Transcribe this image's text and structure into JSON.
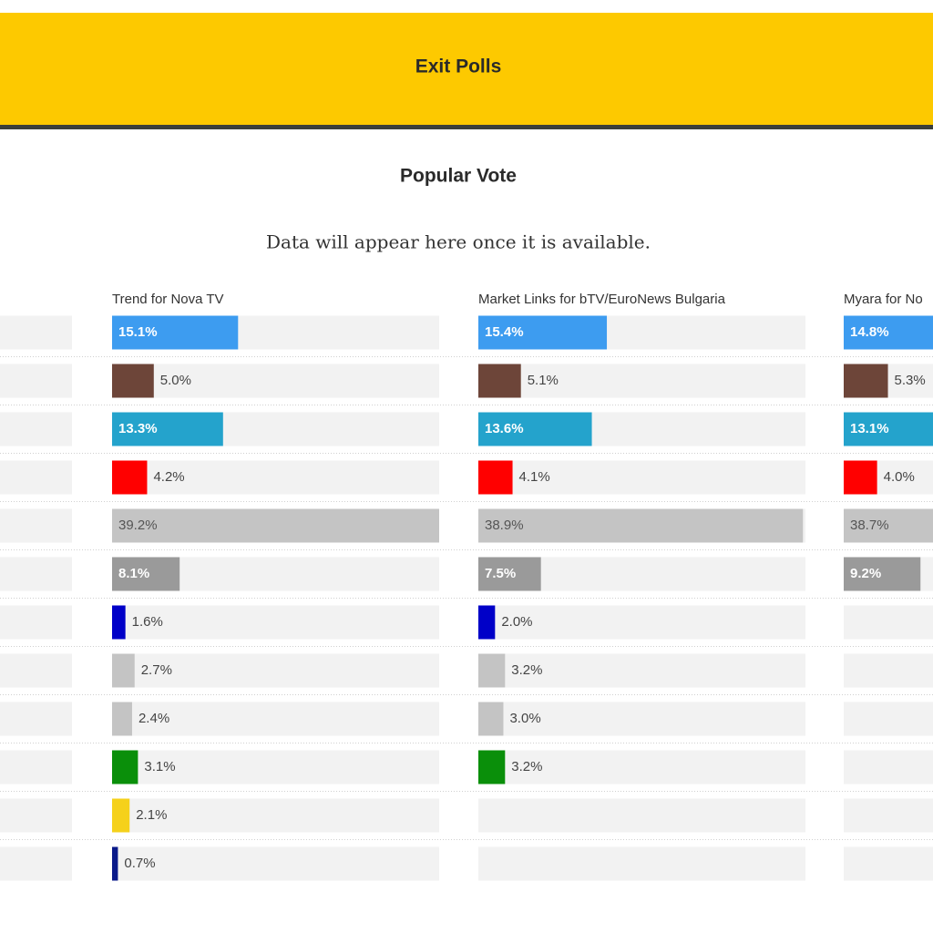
{
  "header": {
    "title": "Exit Polls"
  },
  "section": {
    "title": "Popular Vote",
    "message": "Data will appear here once it is available."
  },
  "chart_data": [
    {
      "type": "bar",
      "orientation": "horizontal",
      "title": "Trend for Nova TV",
      "values": [
        15.1,
        5.0,
        13.3,
        4.2,
        39.2,
        8.1,
        1.6,
        2.7,
        2.4,
        3.1,
        2.1,
        0.7
      ],
      "value_labels": [
        "15.1%",
        "5.0%",
        "13.3%",
        "4.2%",
        "39.2%",
        "8.1%",
        "1.6%",
        "2.7%",
        "2.4%",
        "3.1%",
        "2.1%",
        "0.7%"
      ],
      "colors": [
        "#3d9cf0",
        "#6d4539",
        "#24a3cc",
        "#ff0000",
        "#c4c4c4",
        "#9a9a9a",
        "#0000c8",
        "#c4c4c4",
        "#c4c4c4",
        "#0a8f0a",
        "#f5d11b",
        "#0a1a8a"
      ],
      "xlim": [
        0,
        39.2
      ]
    },
    {
      "type": "bar",
      "orientation": "horizontal",
      "title": "Market Links for bTV/EuroNews Bulgaria",
      "values": [
        15.4,
        5.1,
        13.6,
        4.1,
        38.9,
        7.5,
        2.0,
        3.2,
        3.0,
        3.2,
        null,
        null
      ],
      "value_labels": [
        "15.4%",
        "5.1%",
        "13.6%",
        "4.1%",
        "38.9%",
        "7.5%",
        "2.0%",
        "3.2%",
        "3.0%",
        "3.2%",
        null,
        null
      ],
      "colors": [
        "#3d9cf0",
        "#6d4539",
        "#24a3cc",
        "#ff0000",
        "#c4c4c4",
        "#9a9a9a",
        "#0000c8",
        "#c4c4c4",
        "#c4c4c4",
        "#0a8f0a",
        "#f5d11b",
        "#0a1a8a"
      ],
      "xlim": [
        0,
        39.2
      ]
    },
    {
      "type": "bar",
      "orientation": "horizontal",
      "title": "Myara for No",
      "values": [
        14.8,
        5.3,
        13.1,
        4.0,
        38.7,
        9.2,
        null,
        null,
        null,
        null,
        null,
        null
      ],
      "value_labels": [
        "14.8%",
        "5.3%",
        "13.1%",
        "4.0%",
        "38.7%",
        "9.2%",
        null,
        null,
        null,
        null,
        null,
        null
      ],
      "colors": [
        "#3d9cf0",
        "#6d4539",
        "#24a3cc",
        "#ff0000",
        "#c4c4c4",
        "#9a9a9a",
        "#0000c8",
        "#c4c4c4",
        "#c4c4c4",
        "#0a8f0a",
        "#f5d11b",
        "#0a1a8a"
      ],
      "xlim": [
        0,
        39.2
      ]
    }
  ]
}
